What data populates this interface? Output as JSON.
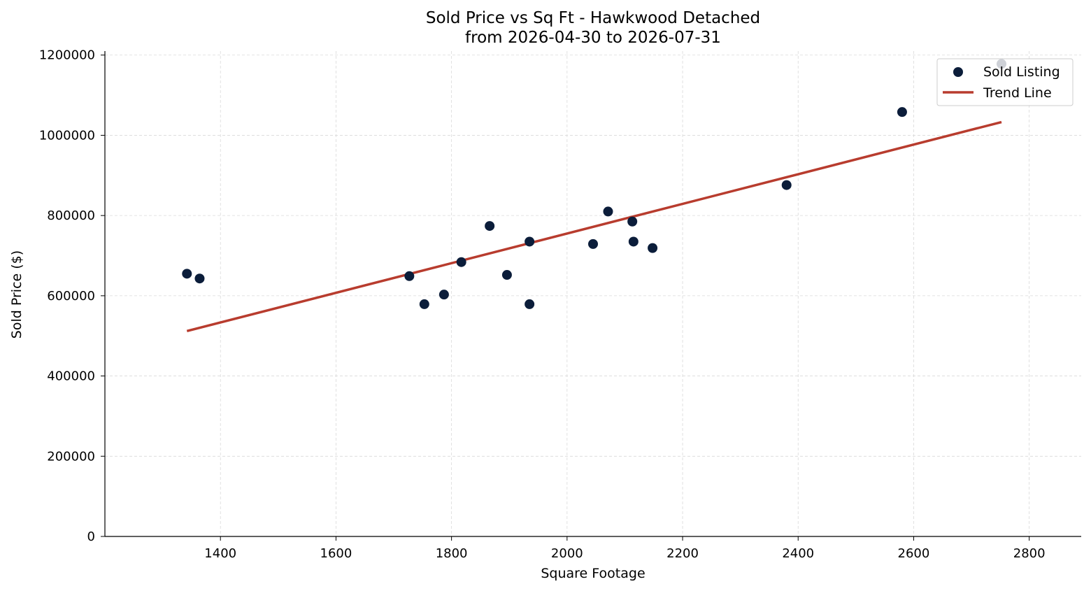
{
  "chart_data": {
    "type": "scatter",
    "title": "Sold Price vs Sq Ft - Hawkwood Detached",
    "subtitle": "from 2026-04-30 to 2026-07-31",
    "xlabel": "Square Footage",
    "ylabel": "Sold Price ($)",
    "xlim": [
      1200,
      2890
    ],
    "ylim": [
      0,
      1210000
    ],
    "xticks": [
      1400,
      1600,
      1800,
      2000,
      2200,
      2400,
      2600,
      2800
    ],
    "yticks": [
      0,
      200000,
      400000,
      600000,
      800000,
      1000000,
      1200000
    ],
    "xtick_labels": [
      "1400",
      "1600",
      "1800",
      "2000",
      "2200",
      "2400",
      "2600",
      "2800"
    ],
    "ytick_labels": [
      "0",
      "200000",
      "400000",
      "600000",
      "800000",
      "1000000",
      "1200000"
    ],
    "grid": true,
    "legend_position": "top-right",
    "series": [
      {
        "name": "Sold Listing",
        "kind": "scatter",
        "color": "#0b1d3a",
        "points": [
          {
            "x": 1342,
            "y": 655000
          },
          {
            "x": 1364,
            "y": 643000
          },
          {
            "x": 1727,
            "y": 649000
          },
          {
            "x": 1753,
            "y": 579000
          },
          {
            "x": 1787,
            "y": 603000
          },
          {
            "x": 1817,
            "y": 684000
          },
          {
            "x": 1866,
            "y": 774000
          },
          {
            "x": 1896,
            "y": 652000
          },
          {
            "x": 1935,
            "y": 735000
          },
          {
            "x": 1935,
            "y": 579000
          },
          {
            "x": 2045,
            "y": 729000
          },
          {
            "x": 2071,
            "y": 810000
          },
          {
            "x": 2113,
            "y": 785000
          },
          {
            "x": 2115,
            "y": 735000
          },
          {
            "x": 2148,
            "y": 719000
          },
          {
            "x": 2380,
            "y": 876000
          },
          {
            "x": 2580,
            "y": 1058000
          },
          {
            "x": 2752,
            "y": 1178000
          }
        ]
      },
      {
        "name": "Trend Line",
        "kind": "line",
        "color": "#b83c2e",
        "points": [
          {
            "x": 1342,
            "y": 512000
          },
          {
            "x": 2752,
            "y": 1033000
          }
        ]
      }
    ]
  }
}
